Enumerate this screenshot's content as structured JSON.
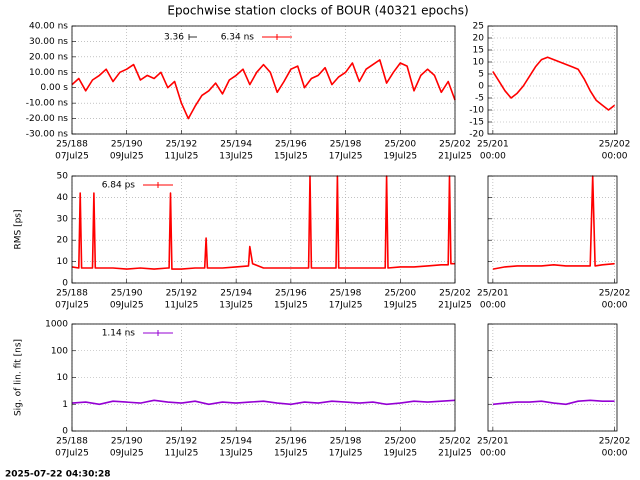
{
  "timestamp": "2025-07-22 04:30:28",
  "chart_data": [
    {
      "type": "line",
      "title": "Epochwise station clocks of BOUR (40321 epochs)",
      "annotation": "3.36",
      "xlim": [
        188,
        202
      ],
      "xticks": [
        {
          "value": 188,
          "label": "25/188"
        },
        {
          "value": 190,
          "label": "25/190"
        },
        {
          "value": 192,
          "label": "25/192"
        },
        {
          "value": 194,
          "label": "25/194"
        },
        {
          "value": 196,
          "label": "25/196"
        },
        {
          "value": 198,
          "label": "25/198"
        },
        {
          "value": 200,
          "label": "25/200"
        },
        {
          "value": 202,
          "label": "25/202"
        }
      ],
      "xtick_sublabels": [
        "07Jul25",
        "09Jul25",
        "11Jul25",
        "13Jul25",
        "15Jul25",
        "17Jul25",
        "19Jul25",
        "21Jul25"
      ],
      "ylim": [
        -30,
        40
      ],
      "yticks": [
        {
          "value": -30,
          "label": "-30.00 ns"
        },
        {
          "value": -20,
          "label": "-20.00 ns"
        },
        {
          "value": -10,
          "label": "-10.00 ns"
        },
        {
          "value": 0,
          "label": "0.00 s"
        },
        {
          "value": 10,
          "label": "10.00 ns"
        },
        {
          "value": 20,
          "label": "20.00 ns"
        },
        {
          "value": 30,
          "label": "30.00 ns"
        },
        {
          "value": 40,
          "label": "40.00 ns"
        }
      ],
      "grid": true,
      "series": [
        {
          "name": "6.34 ns",
          "color": "#ff0000",
          "x": [
            188,
            188.25,
            188.5,
            188.75,
            189,
            189.25,
            189.5,
            189.75,
            190,
            190.25,
            190.5,
            190.75,
            191,
            191.25,
            191.5,
            191.75,
            192,
            192.25,
            192.5,
            192.75,
            193,
            193.25,
            193.5,
            193.75,
            194,
            194.25,
            194.5,
            194.75,
            195,
            195.25,
            195.5,
            195.75,
            196,
            196.25,
            196.5,
            196.75,
            197,
            197.25,
            197.5,
            197.75,
            198,
            198.25,
            198.5,
            198.75,
            199,
            199.25,
            199.5,
            199.75,
            200,
            200.25,
            200.5,
            200.75,
            201,
            201.25,
            201.5,
            201.75,
            202
          ],
          "values": [
            2,
            6,
            -2,
            5,
            8,
            12,
            4,
            10,
            12,
            15,
            5,
            8,
            6,
            10,
            0,
            4,
            -10,
            -20,
            -12,
            -5,
            -2,
            3,
            -4,
            5,
            8,
            12,
            2,
            10,
            15,
            10,
            -3,
            4,
            12,
            14,
            0,
            6,
            8,
            13,
            2,
            7,
            10,
            16,
            4,
            12,
            15,
            18,
            3,
            10,
            16,
            14,
            -2,
            8,
            12,
            8,
            -3,
            4,
            -8
          ]
        }
      ]
    },
    {
      "type": "line",
      "xlim": [
        200.96,
        202.02
      ],
      "xticks": [
        {
          "value": 201,
          "label": "25/201"
        },
        {
          "value": 202,
          "label": "25/202"
        }
      ],
      "xtick_sublabels": [
        "00:00",
        "00:00"
      ],
      "ylim": [
        -20,
        25
      ],
      "yticks": [
        -20,
        -15,
        -10,
        -5,
        0,
        5,
        10,
        15,
        20,
        25
      ],
      "grid": true,
      "series": [
        {
          "color": "#ff0000",
          "x": [
            201,
            201.05,
            201.1,
            201.15,
            201.2,
            201.25,
            201.3,
            201.35,
            201.4,
            201.45,
            201.5,
            201.55,
            201.6,
            201.65,
            201.7,
            201.75,
            201.8,
            201.85,
            201.9,
            201.95,
            202
          ],
          "values": [
            6,
            2,
            -2,
            -5,
            -3,
            0,
            4,
            8,
            11,
            12,
            11,
            10,
            9,
            8,
            7,
            3,
            -2,
            -6,
            -8,
            -10,
            -8
          ]
        }
      ]
    },
    {
      "type": "line",
      "ylabel": "RMS [ps]",
      "xlim": [
        188,
        202
      ],
      "xticks": [
        {
          "value": 188,
          "label": "25/188"
        },
        {
          "value": 190,
          "label": "25/190"
        },
        {
          "value": 192,
          "label": "25/192"
        },
        {
          "value": 194,
          "label": "25/194"
        },
        {
          "value": 196,
          "label": "25/196"
        },
        {
          "value": 198,
          "label": "25/198"
        },
        {
          "value": 200,
          "label": "25/200"
        },
        {
          "value": 202,
          "label": "25/202"
        }
      ],
      "xtick_sublabels": [
        "07Jul25",
        "09Jul25",
        "11Jul25",
        "13Jul25",
        "15Jul25",
        "17Jul25",
        "19Jul25",
        "21Jul25"
      ],
      "ylim": [
        0,
        50
      ],
      "yticks": [
        0,
        10,
        20,
        30,
        40,
        50
      ],
      "grid": true,
      "series": [
        {
          "name": "6.84 ps",
          "color": "#ff0000",
          "x": [
            188,
            188.25,
            188.3,
            188.35,
            188.75,
            188.8,
            188.85,
            189,
            189.5,
            190,
            190.5,
            191,
            191.5,
            191.55,
            191.6,
            191.65,
            192,
            192.5,
            192.85,
            192.9,
            192.95,
            193,
            193.5,
            194,
            194.45,
            194.5,
            194.6,
            195,
            195.5,
            196,
            196.5,
            196.65,
            196.7,
            196.75,
            197,
            197.5,
            197.65,
            197.7,
            197.75,
            198,
            198.5,
            199,
            199.45,
            199.5,
            199.55,
            200,
            200.5,
            201,
            201.5,
            201.75,
            201.8,
            201.85,
            202
          ],
          "values": [
            7.5,
            7,
            42,
            7,
            7,
            42,
            7,
            7,
            7,
            6.5,
            7,
            6.5,
            7,
            7,
            42,
            6.5,
            6.5,
            7,
            7,
            21,
            7,
            7,
            7,
            7.5,
            8,
            17,
            9,
            7,
            7,
            7,
            7,
            7,
            50,
            7,
            7,
            7,
            7,
            50,
            7,
            7,
            7,
            7,
            7,
            50,
            7,
            7.5,
            7.5,
            8,
            8.5,
            8.5,
            50,
            9,
            9
          ]
        }
      ]
    },
    {
      "type": "line",
      "xlim": [
        200.96,
        202.02
      ],
      "xticks": [
        {
          "value": 201,
          "label": "25/201"
        },
        {
          "value": 202,
          "label": "25/202"
        }
      ],
      "xtick_sublabels": [
        "00:00",
        "00:00"
      ],
      "ylim": [
        0,
        50
      ],
      "yticks": [
        0,
        10,
        20,
        30,
        40,
        50
      ],
      "ytick_labels": false,
      "grid": true,
      "series": [
        {
          "color": "#ff0000",
          "x": [
            201,
            201.1,
            201.2,
            201.3,
            201.4,
            201.5,
            201.6,
            201.7,
            201.8,
            201.82,
            201.84,
            201.9,
            202
          ],
          "values": [
            6.5,
            7.5,
            8,
            8,
            8,
            8.5,
            8,
            8,
            8,
            50,
            8,
            8.5,
            9
          ]
        }
      ]
    },
    {
      "type": "line",
      "ylabel": "Sig. of lin. fit [ns]",
      "log_scale": true,
      "xlim": [
        188,
        202
      ],
      "xticks": [
        {
          "value": 188,
          "label": "25/188"
        },
        {
          "value": 190,
          "label": "25/190"
        },
        {
          "value": 192,
          "label": "25/192"
        },
        {
          "value": 194,
          "label": "25/194"
        },
        {
          "value": 196,
          "label": "25/196"
        },
        {
          "value": 198,
          "label": "25/198"
        },
        {
          "value": 200,
          "label": "25/200"
        },
        {
          "value": 202,
          "label": "25/202"
        }
      ],
      "xtick_sublabels": [
        "07Jul25",
        "09Jul25",
        "11Jul25",
        "13Jul25",
        "15Jul25",
        "17Jul25",
        "19Jul25",
        "21Jul25"
      ],
      "ylim": [
        0.1,
        1000
      ],
      "yticks": [
        {
          "value": 0.1,
          "label": "0"
        },
        1,
        10,
        100,
        1000
      ],
      "grid": true,
      "series": [
        {
          "name": "1.14 ns",
          "color": "#9400d3",
          "x": [
            188,
            188.5,
            189,
            189.5,
            190,
            190.5,
            191,
            191.5,
            192,
            192.5,
            193,
            193.5,
            194,
            194.5,
            195,
            195.5,
            196,
            196.5,
            197,
            197.5,
            198,
            198.5,
            199,
            199.5,
            200,
            200.5,
            201,
            201.5,
            202
          ],
          "values": [
            1.1,
            1.2,
            1.0,
            1.3,
            1.2,
            1.1,
            1.4,
            1.2,
            1.1,
            1.3,
            1.0,
            1.2,
            1.1,
            1.2,
            1.3,
            1.1,
            1.0,
            1.2,
            1.1,
            1.3,
            1.2,
            1.1,
            1.2,
            1.0,
            1.1,
            1.3,
            1.2,
            1.3,
            1.4
          ]
        }
      ]
    },
    {
      "type": "line",
      "log_scale": true,
      "xlim": [
        200.96,
        202.02
      ],
      "xticks": [
        {
          "value": 201,
          "label": "25/201"
        },
        {
          "value": 202,
          "label": "25/202"
        }
      ],
      "xtick_sublabels": [
        "00:00",
        "00:00"
      ],
      "ylim": [
        0.1,
        1000
      ],
      "yticks": [
        0.1,
        1,
        10,
        100,
        1000
      ],
      "ytick_labels": false,
      "grid": true,
      "series": [
        {
          "color": "#9400d3",
          "x": [
            201,
            201.1,
            201.2,
            201.3,
            201.4,
            201.5,
            201.6,
            201.7,
            201.8,
            201.9,
            202
          ],
          "values": [
            1.0,
            1.1,
            1.2,
            1.2,
            1.3,
            1.1,
            1.0,
            1.3,
            1.4,
            1.3,
            1.3
          ]
        }
      ]
    }
  ]
}
